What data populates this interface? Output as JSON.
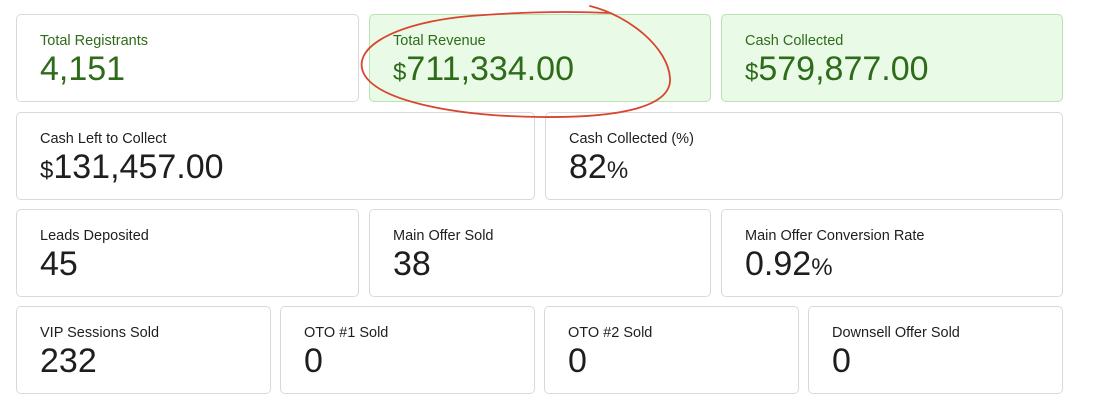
{
  "cards": {
    "total_registrants": {
      "label": "Total Registrants",
      "value": "4,151"
    },
    "total_revenue": {
      "label": "Total Revenue",
      "currency": "$",
      "value": "711,334.00"
    },
    "cash_collected": {
      "label": "Cash Collected",
      "currency": "$",
      "value": "579,877.00"
    },
    "cash_left": {
      "label": "Cash Left to Collect",
      "currency": "$",
      "value": "131,457.00"
    },
    "cash_collected_pct": {
      "label": "Cash Collected (%)",
      "value": "82",
      "unit": "%"
    },
    "leads_deposited": {
      "label": "Leads Deposited",
      "value": "45"
    },
    "main_offer_sold": {
      "label": "Main Offer Sold",
      "value": "38"
    },
    "main_offer_conversion": {
      "label": "Main Offer Conversion Rate",
      "value": "0.92",
      "unit": "%"
    },
    "vip_sessions_sold": {
      "label": "VIP Sessions Sold",
      "value": "232"
    },
    "oto1_sold": {
      "label": "OTO #1 Sold",
      "value": "0"
    },
    "oto2_sold": {
      "label": "OTO #2 Sold",
      "value": "0"
    },
    "downsell_sold": {
      "label": "Downsell Offer Sold",
      "value": "0"
    }
  },
  "colors": {
    "highlight_bg": "#e9fbe6",
    "highlight_border": "#b9e3b3",
    "highlight_text": "#2e6b1a",
    "text": "#1e1e1e",
    "annotation": "#d9452f"
  }
}
